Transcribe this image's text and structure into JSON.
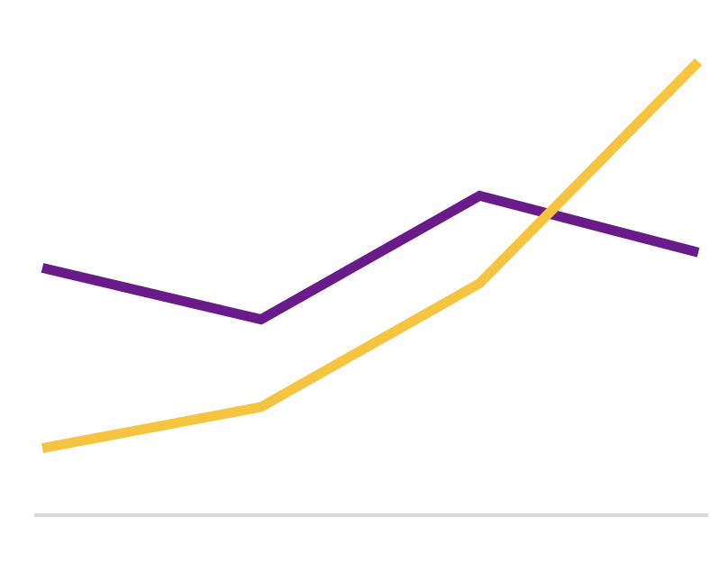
{
  "chart_data": {
    "type": "line",
    "x": [
      1,
      2,
      3,
      4
    ],
    "xlim": [
      1,
      4
    ],
    "ylim": [
      0,
      100
    ],
    "grid": false,
    "series": [
      {
        "values": [
          48,
          38,
          62,
          51
        ],
        "color": "#6a1b8a"
      },
      {
        "values": [
          13,
          21,
          45,
          88
        ],
        "color": "#f5c542"
      }
    ],
    "baseline_color": "#d9d9d9"
  }
}
